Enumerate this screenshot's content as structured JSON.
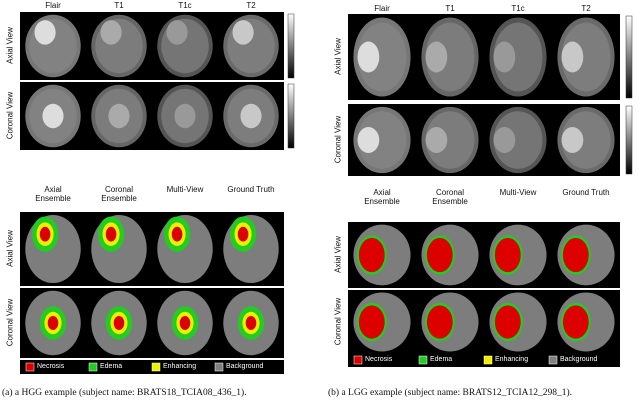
{
  "panels": [
    {
      "top": {
        "columns": [
          "Flair",
          "T1",
          "T1c",
          "T2"
        ],
        "rows": [
          "Axial View",
          "Coronal View"
        ]
      },
      "bottom": {
        "columns": [
          "Axial Ensemble",
          "Coronal Ensemble",
          "Multi-View",
          "Ground Truth"
        ],
        "rows": [
          "Axial View",
          "Coronal View"
        ],
        "legend": [
          "Necrosis",
          "Edema",
          "Enhancing",
          "Background"
        ]
      },
      "caption": "(a) a HGG example (subject name: BRATS18_TCIA08_436_1)."
    },
    {
      "top": {
        "columns": [
          "Flair",
          "T1",
          "T1c",
          "T2"
        ],
        "rows": [
          "Axial View",
          "Coronal View"
        ]
      },
      "bottom": {
        "columns": [
          "Axial Ensemble",
          "Coronal Ensemble",
          "Multi-View",
          "Ground Truth"
        ],
        "rows": [
          "Axial View",
          "Coronal View"
        ],
        "legend": [
          "Necrosis",
          "Edema",
          "Enhancing",
          "Background"
        ]
      },
      "caption": "(b) a LGG example (subject name: BRATS12_TCIA12_298_1)."
    }
  ]
}
